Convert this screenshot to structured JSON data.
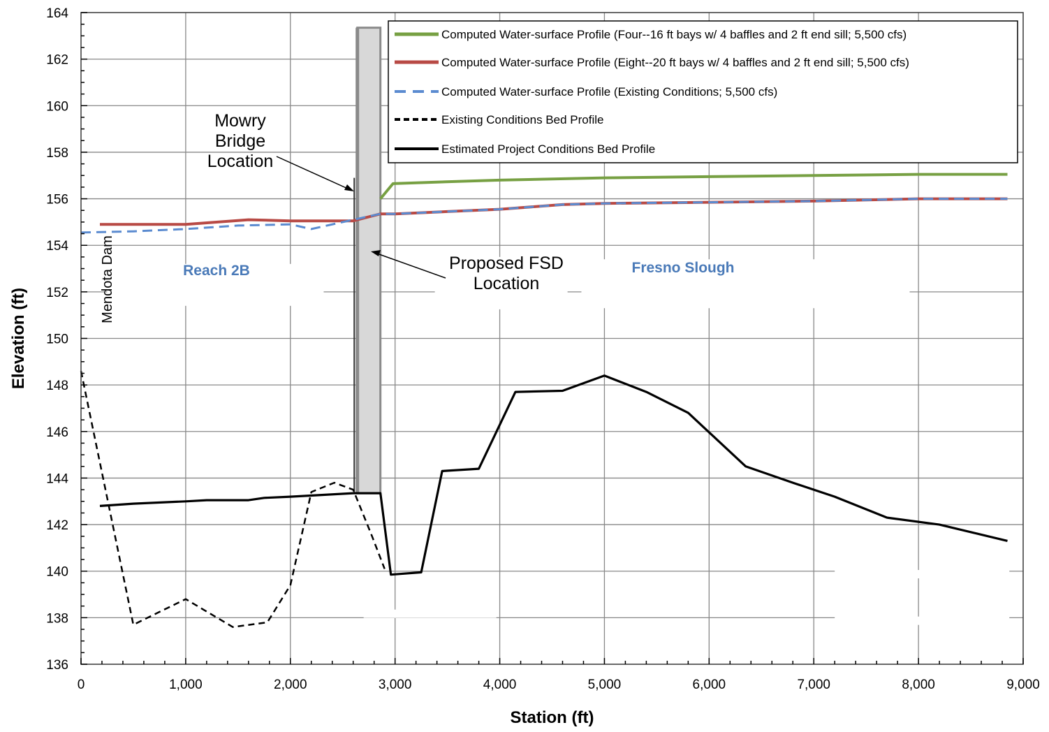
{
  "chart_data": {
    "type": "line",
    "xlabel": "Station (ft)",
    "ylabel": "Elevation (ft)",
    "xlim": [
      0,
      9000
    ],
    "ylim": [
      136,
      164
    ],
    "x_ticks": [
      0,
      1000,
      2000,
      3000,
      4000,
      5000,
      6000,
      7000,
      8000,
      9000
    ],
    "x_tick_labels": [
      "0",
      "1,000",
      "2,000",
      "3,000",
      "4,000",
      "5,000",
      "6,000",
      "7,000",
      "8,000",
      "9,000"
    ],
    "y_ticks": [
      136,
      138,
      140,
      142,
      144,
      146,
      148,
      150,
      152,
      154,
      156,
      158,
      160,
      162,
      164
    ],
    "y_tick_labels": [
      "136",
      "138",
      "140",
      "142",
      "144",
      "146",
      "148",
      "150",
      "152",
      "154",
      "156",
      "158",
      "160",
      "162",
      "164"
    ],
    "grid": true,
    "legend_position": "top-right",
    "series": [
      {
        "name": "Computed Water-surface Profile (Four--16 ft bays w/ 4 baffles and 2 ft end sill; 5,500 cfs)",
        "color": "#77a043",
        "style": "solid",
        "x": [
          2860,
          2980,
          3300,
          4000,
          5000,
          6000,
          7000,
          8000,
          8850
        ],
        "y": [
          156.0,
          156.65,
          156.7,
          156.8,
          156.9,
          156.95,
          157.0,
          157.05,
          157.05
        ]
      },
      {
        "name": "Computed Water-surface Profile (Eight--20 ft bays w/ 4 baffles and 2 ft end sill; 5,500 cfs)",
        "color": "#b84a45",
        "style": "solid",
        "x": [
          180,
          500,
          1000,
          1600,
          2000,
          2600,
          2860,
          3000,
          3500,
          4000,
          4600,
          5000,
          6000,
          7000,
          8000,
          8850
        ],
        "y": [
          154.9,
          154.9,
          154.9,
          155.1,
          155.05,
          155.05,
          155.35,
          155.35,
          155.45,
          155.55,
          155.75,
          155.8,
          155.85,
          155.9,
          156.0,
          156.0
        ]
      },
      {
        "name": "Computed Water-surface Profile (Existing Conditions; 5,500 cfs)",
        "color": "#5b8bd0",
        "style": "dashed",
        "x": [
          0,
          500,
          1000,
          1500,
          2000,
          2200,
          2600,
          2860,
          3000,
          3500,
          4000,
          4600,
          5000,
          6000,
          7000,
          8000,
          8850
        ],
        "y": [
          154.55,
          154.6,
          154.7,
          154.85,
          154.9,
          154.7,
          155.1,
          155.35,
          155.35,
          155.45,
          155.55,
          155.75,
          155.8,
          155.85,
          155.9,
          156.0,
          156.0
        ]
      },
      {
        "name": "Existing Conditions Bed Profile",
        "color": "#000000",
        "style": "dashed",
        "x": [
          0,
          500,
          1000,
          1450,
          1780,
          2000,
          2200,
          2420,
          2600,
          2780,
          2900
        ],
        "y": [
          148.6,
          137.7,
          138.8,
          137.6,
          137.8,
          139.4,
          143.4,
          143.8,
          143.5,
          141.5,
          140.1
        ]
      },
      {
        "name": "Estimated Project Conditions Bed Profile",
        "color": "#000000",
        "style": "solid",
        "x": [
          180,
          500,
          1000,
          1200,
          1600,
          1750,
          2000,
          2600,
          2650,
          2860,
          2960,
          3250,
          3450,
          3800,
          4150,
          4600,
          5000,
          5400,
          5800,
          6350,
          6800,
          7200,
          7700,
          8200,
          8850
        ],
        "y": [
          142.8,
          142.9,
          143.0,
          143.05,
          143.05,
          143.15,
          143.2,
          143.35,
          143.35,
          143.35,
          139.85,
          139.95,
          144.3,
          144.4,
          147.7,
          147.75,
          148.4,
          147.7,
          146.8,
          144.5,
          143.8,
          143.2,
          142.3,
          142.0,
          141.3
        ]
      }
    ],
    "annotations": {
      "bridge": [
        "Mowry",
        "Bridge",
        "Location"
      ],
      "fsd": [
        "Proposed FSD",
        "Location"
      ],
      "reach": "Reach 2B",
      "slough": "Fresno Slough",
      "dam": "Mendota Dam"
    }
  }
}
